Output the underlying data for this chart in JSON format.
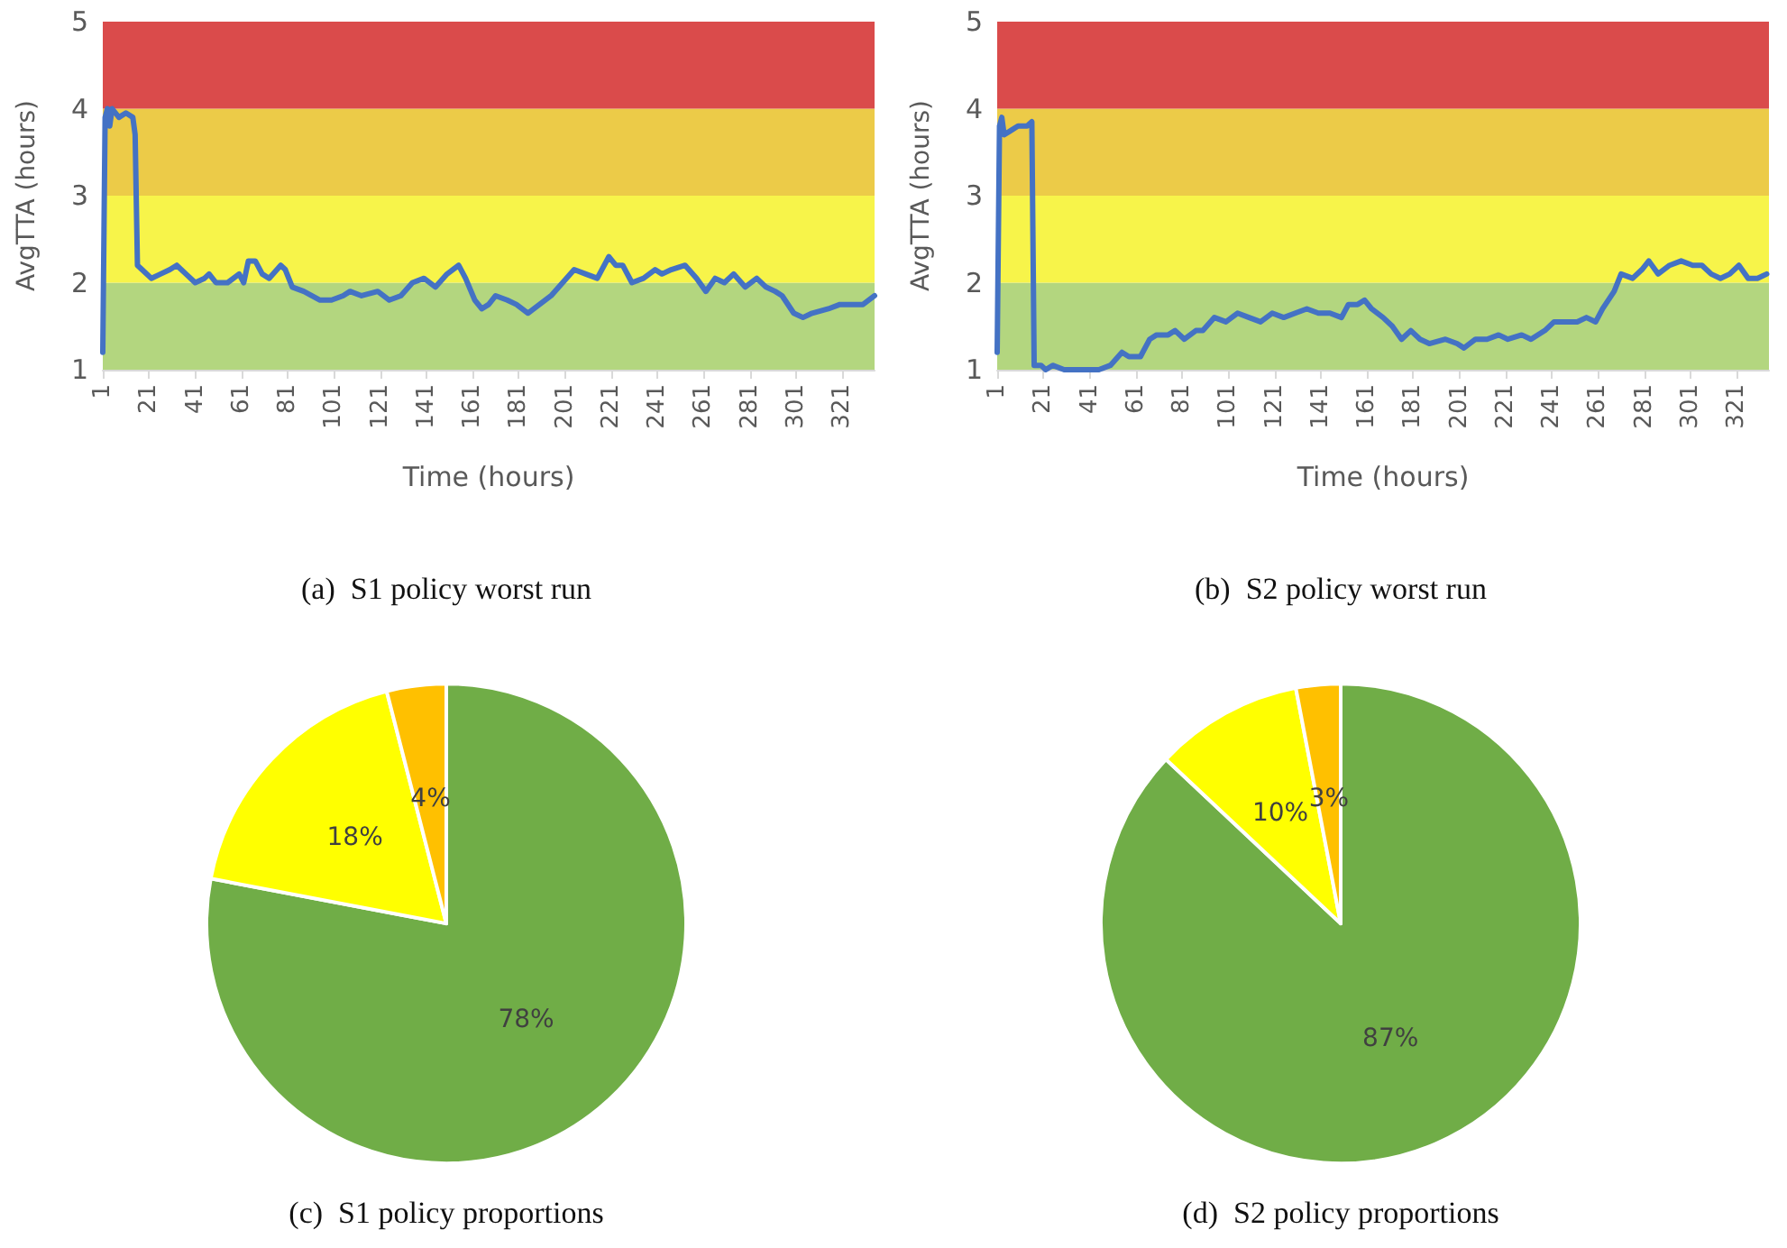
{
  "chart_data": [
    {
      "type": "line",
      "title": "(a)  S1 policy worst run",
      "xlabel": "Time (hours)",
      "ylabel": "AvgTTA (hours)",
      "xlim": [
        1,
        335
      ],
      "xticks": [
        1,
        21,
        41,
        61,
        81,
        101,
        121,
        141,
        161,
        181,
        201,
        221,
        241,
        261,
        281,
        301,
        321
      ],
      "ylim": [
        1,
        5
      ],
      "yticks": [
        1,
        2,
        3,
        4,
        5
      ],
      "grid": false,
      "marker": "none",
      "line_style": "solid",
      "bands": [
        {
          "axis": "y",
          "from": 1,
          "to": 2,
          "color": "#b3d67f"
        },
        {
          "axis": "y",
          "from": 2,
          "to": 3,
          "color": "#f7f44a"
        },
        {
          "axis": "y",
          "from": 3,
          "to": 4,
          "color": "#eccb48"
        },
        {
          "axis": "y",
          "from": 4,
          "to": 5,
          "color": "#da4b4b"
        }
      ],
      "series": [
        {
          "color": "#4472c4",
          "x": [
            1,
            2,
            3,
            4,
            5,
            8,
            11,
            14,
            15,
            16,
            18,
            22,
            26,
            30,
            33,
            37,
            41,
            45,
            47,
            50,
            55,
            60,
            62,
            64,
            67,
            70,
            73,
            78,
            80,
            83,
            88,
            95,
            100,
            105,
            108,
            113,
            120,
            125,
            130,
            135,
            140,
            145,
            150,
            155,
            158,
            162,
            165,
            168,
            171,
            176,
            180,
            185,
            190,
            195,
            200,
            205,
            210,
            215,
            220,
            223,
            226,
            230,
            235,
            240,
            243,
            247,
            253,
            258,
            262,
            266,
            270,
            274,
            279,
            284,
            288,
            292,
            295,
            300,
            304,
            308,
            315,
            320,
            325,
            330,
            335
          ],
          "values": [
            1.2,
            3.9,
            4.0,
            3.8,
            4.0,
            3.9,
            3.95,
            3.9,
            3.7,
            2.2,
            2.15,
            2.05,
            2.1,
            2.15,
            2.2,
            2.1,
            2.0,
            2.05,
            2.1,
            2.0,
            2.0,
            2.1,
            2.0,
            2.25,
            2.25,
            2.1,
            2.05,
            2.2,
            2.15,
            1.95,
            1.9,
            1.8,
            1.8,
            1.85,
            1.9,
            1.85,
            1.9,
            1.8,
            1.85,
            2.0,
            2.05,
            1.95,
            2.1,
            2.2,
            2.05,
            1.8,
            1.7,
            1.75,
            1.85,
            1.8,
            1.75,
            1.65,
            1.75,
            1.85,
            2.0,
            2.15,
            2.1,
            2.05,
            2.3,
            2.2,
            2.2,
            2.0,
            2.05,
            2.15,
            2.1,
            2.15,
            2.2,
            2.05,
            1.9,
            2.05,
            2.0,
            2.1,
            1.95,
            2.05,
            1.95,
            1.9,
            1.85,
            1.65,
            1.6,
            1.65,
            1.7,
            1.75,
            1.75,
            1.75,
            1.85
          ]
        }
      ]
    },
    {
      "type": "line",
      "title": "(b)  S2 policy worst run",
      "xlabel": "Time (hours)",
      "ylabel": "AvgTTA (hours)",
      "xlim": [
        1,
        335
      ],
      "xticks": [
        1,
        21,
        41,
        61,
        81,
        101,
        121,
        141,
        161,
        181,
        201,
        221,
        241,
        261,
        281,
        301,
        321
      ],
      "ylim": [
        1,
        5
      ],
      "yticks": [
        1,
        2,
        3,
        4,
        5
      ],
      "grid": false,
      "marker": "none",
      "line_style": "solid",
      "bands": [
        {
          "axis": "y",
          "from": 1,
          "to": 2,
          "color": "#b3d67f"
        },
        {
          "axis": "y",
          "from": 2,
          "to": 3,
          "color": "#f7f44a"
        },
        {
          "axis": "y",
          "from": 3,
          "to": 4,
          "color": "#eccb48"
        },
        {
          "axis": "y",
          "from": 4,
          "to": 5,
          "color": "#da4b4b"
        }
      ],
      "series": [
        {
          "color": "#4472c4",
          "x": [
            1,
            2,
            3,
            4,
            7,
            10,
            14,
            16,
            17,
            20,
            22,
            25,
            30,
            40,
            45,
            50,
            55,
            58,
            63,
            67,
            70,
            75,
            78,
            82,
            87,
            90,
            95,
            100,
            105,
            110,
            115,
            120,
            125,
            130,
            135,
            140,
            145,
            150,
            153,
            157,
            160,
            163,
            168,
            172,
            176,
            180,
            184,
            188,
            195,
            200,
            203,
            208,
            213,
            218,
            222,
            228,
            232,
            238,
            242,
            247,
            252,
            256,
            260,
            263,
            268,
            271,
            276,
            280,
            283,
            287,
            292,
            297,
            302,
            306,
            310,
            314,
            318,
            322,
            326,
            330,
            334
          ],
          "values": [
            1.2,
            3.8,
            3.9,
            3.7,
            3.75,
            3.8,
            3.8,
            3.85,
            1.05,
            1.05,
            1.0,
            1.05,
            1.0,
            1.0,
            1.0,
            1.05,
            1.2,
            1.15,
            1.15,
            1.35,
            1.4,
            1.4,
            1.45,
            1.35,
            1.45,
            1.45,
            1.6,
            1.55,
            1.65,
            1.6,
            1.55,
            1.65,
            1.6,
            1.65,
            1.7,
            1.65,
            1.65,
            1.6,
            1.75,
            1.75,
            1.8,
            1.7,
            1.6,
            1.5,
            1.35,
            1.45,
            1.35,
            1.3,
            1.35,
            1.3,
            1.25,
            1.35,
            1.35,
            1.4,
            1.35,
            1.4,
            1.35,
            1.45,
            1.55,
            1.55,
            1.55,
            1.6,
            1.55,
            1.7,
            1.9,
            2.1,
            2.05,
            2.15,
            2.25,
            2.1,
            2.2,
            2.25,
            2.2,
            2.2,
            2.1,
            2.05,
            2.1,
            2.2,
            2.05,
            2.05,
            2.1
          ]
        }
      ]
    },
    {
      "type": "pie",
      "title": "(c)  S1 policy proportions",
      "categories": [
        null,
        null,
        null
      ],
      "values": [
        78,
        18,
        4
      ],
      "colors": [
        "#70ad47",
        "#ffff00",
        "#ffc000"
      ],
      "value_labels": [
        "78%",
        "18%",
        "4%"
      ]
    },
    {
      "type": "pie",
      "title": "(d)  S2 policy proportions",
      "categories": [
        null,
        null,
        null
      ],
      "values": [
        87,
        10,
        3
      ],
      "colors": [
        "#70ad47",
        "#ffff00",
        "#ffc000"
      ],
      "value_labels": [
        "87%",
        "10%",
        "3%"
      ]
    }
  ]
}
